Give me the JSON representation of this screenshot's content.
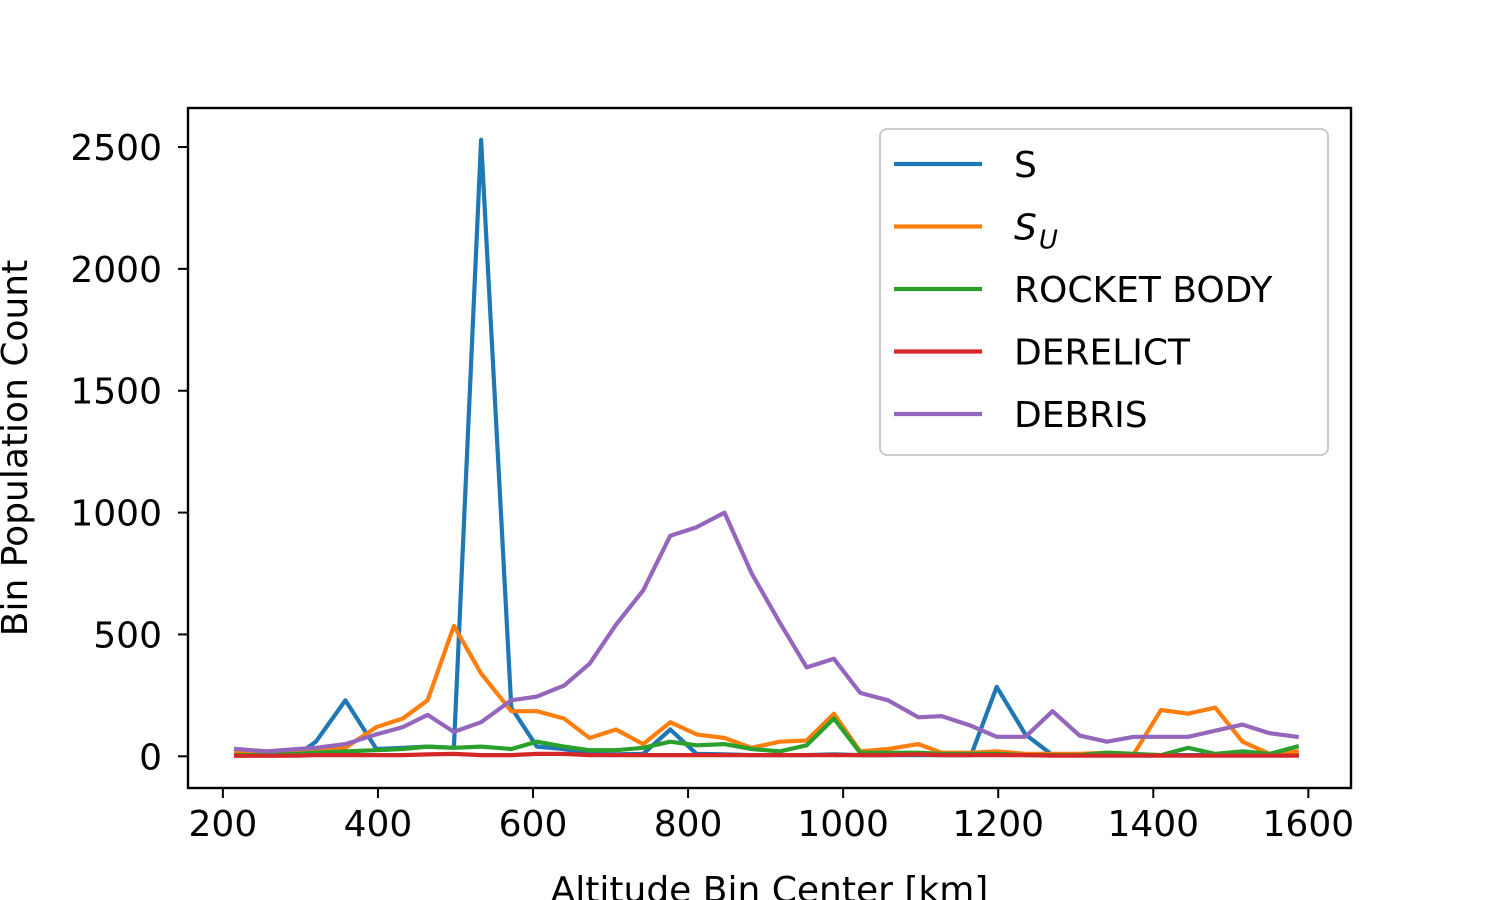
{
  "chart_data": {
    "type": "line",
    "xlabel": "Altitude Bin Center [km]",
    "ylabel": "Bin Population Count",
    "xlim": [
      155,
      1655
    ],
    "ylim": [
      -130,
      2660
    ],
    "xticks": [
      200,
      400,
      600,
      800,
      1000,
      1200,
      1400,
      1600
    ],
    "yticks": [
      0,
      500,
      1000,
      1500,
      2000,
      2500
    ],
    "legend_position": "upper right",
    "x": [
      217,
      257,
      297,
      320,
      358,
      398,
      432,
      464,
      498,
      533,
      572,
      605,
      640,
      673,
      707,
      742,
      777,
      811,
      847,
      882,
      918,
      953,
      988,
      1022,
      1058,
      1097,
      1127,
      1165,
      1198,
      1235,
      1270,
      1305,
      1340,
      1375,
      1410,
      1445,
      1480,
      1515,
      1550,
      1585
    ],
    "series": [
      {
        "name": "S",
        "name_main": "S",
        "name_sub": "",
        "color": "#1f77b4",
        "values": [
          10,
          5,
          8,
          60,
          230,
          30,
          35,
          40,
          35,
          2530,
          200,
          40,
          30,
          10,
          8,
          10,
          110,
          10,
          8,
          5,
          5,
          5,
          8,
          5,
          5,
          5,
          5,
          5,
          285,
          90,
          5,
          5,
          5,
          5,
          5,
          5,
          5,
          5,
          5,
          5
        ]
      },
      {
        "name": "S_U",
        "name_main": "S",
        "name_sub": "U",
        "color": "#ff7f0e",
        "values": [
          20,
          10,
          20,
          25,
          35,
          120,
          155,
          230,
          535,
          340,
          185,
          185,
          155,
          75,
          110,
          50,
          140,
          90,
          75,
          35,
          60,
          65,
          175,
          20,
          30,
          50,
          15,
          15,
          20,
          10,
          10,
          10,
          15,
          10,
          190,
          175,
          200,
          60,
          10,
          20
        ]
      },
      {
        "name": "ROCKET BODY",
        "name_main": "ROCKET BODY",
        "name_sub": "",
        "color": "#2ca02c",
        "values": [
          5,
          5,
          10,
          15,
          20,
          25,
          30,
          40,
          35,
          40,
          30,
          60,
          40,
          25,
          25,
          35,
          60,
          45,
          50,
          30,
          20,
          45,
          155,
          15,
          15,
          15,
          10,
          10,
          10,
          5,
          5,
          5,
          15,
          10,
          5,
          35,
          10,
          20,
          10,
          40
        ]
      },
      {
        "name": "DERELICT",
        "name_main": "DERELICT",
        "name_sub": "",
        "color": "#d62728",
        "values": [
          2,
          2,
          3,
          5,
          5,
          5,
          5,
          8,
          10,
          5,
          5,
          10,
          10,
          5,
          5,
          5,
          5,
          5,
          5,
          5,
          5,
          5,
          5,
          5,
          5,
          8,
          5,
          5,
          5,
          5,
          3,
          3,
          3,
          3,
          3,
          3,
          3,
          3,
          3,
          3
        ]
      },
      {
        "name": "DEBRIS",
        "name_main": "DEBRIS",
        "name_sub": "",
        "color": "#9467bd",
        "values": [
          30,
          20,
          30,
          35,
          50,
          90,
          120,
          170,
          100,
          140,
          230,
          245,
          290,
          380,
          540,
          680,
          905,
          940,
          1000,
          750,
          550,
          365,
          400,
          260,
          230,
          160,
          165,
          125,
          80,
          80,
          185,
          85,
          60,
          80,
          80,
          80,
          105,
          130,
          95,
          80
        ]
      }
    ]
  }
}
